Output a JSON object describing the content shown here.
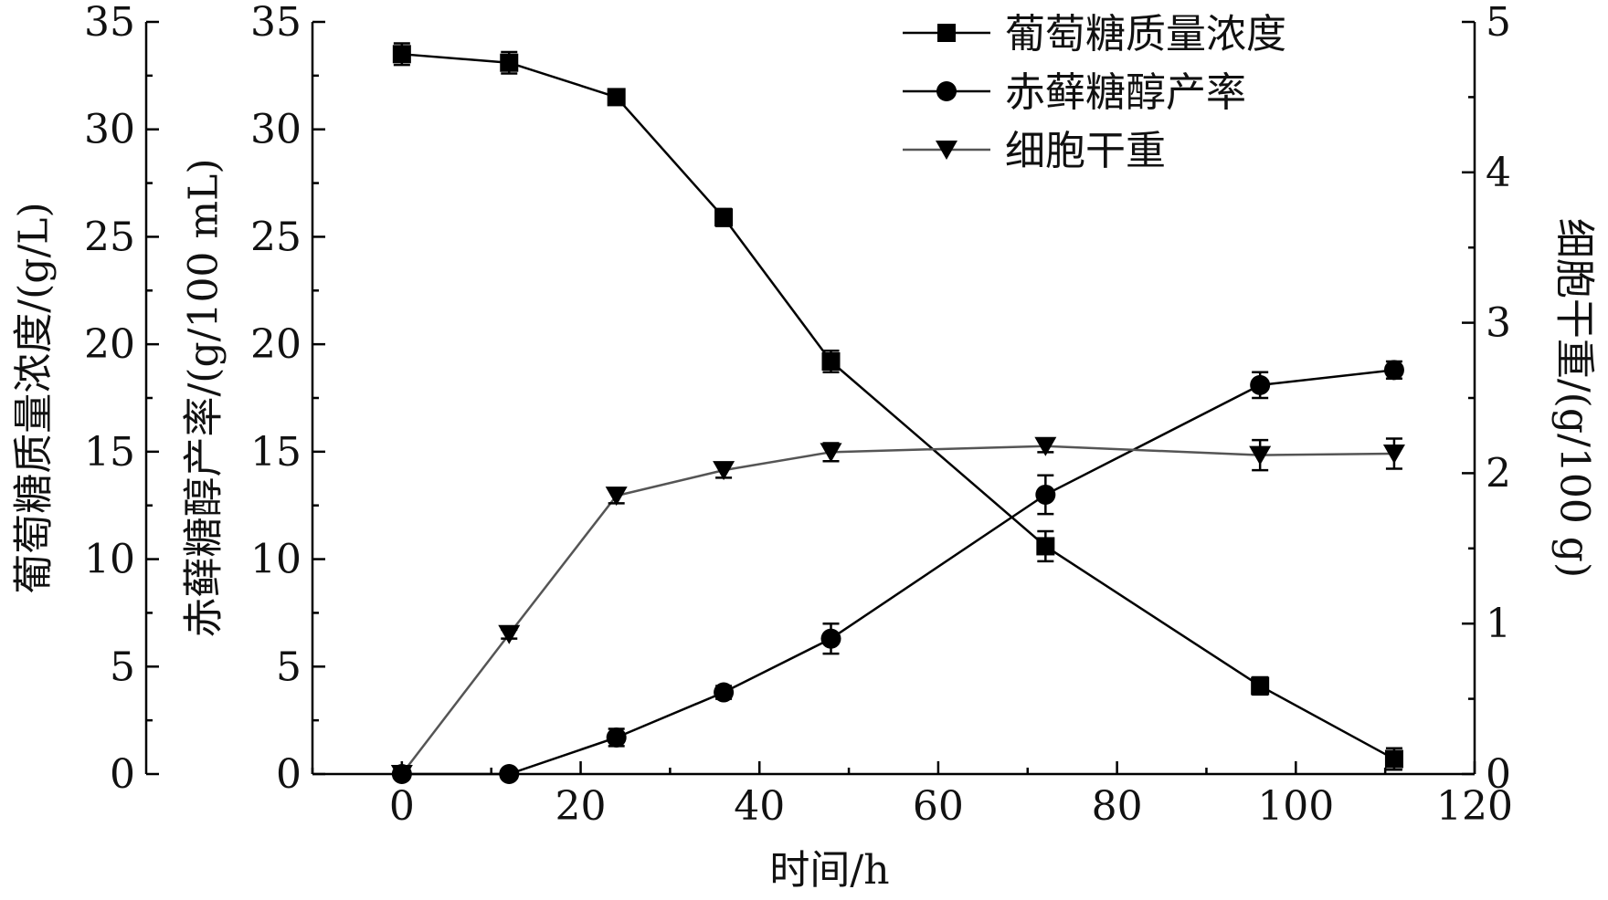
{
  "chart_data": {
    "type": "line",
    "title": "",
    "xlabel": "时间/h",
    "xlim": [
      -10,
      120
    ],
    "x_ticks": [
      0,
      20,
      40,
      60,
      80,
      100,
      120
    ],
    "axes": {
      "left1": {
        "label": "葡萄糖质量浓度/(g/L)",
        "lim": [
          0,
          35
        ],
        "ticks": [
          0,
          5,
          10,
          15,
          20,
          25,
          30,
          35
        ]
      },
      "left2": {
        "label": "赤藓糖醇产率/(g/100 mL)",
        "lim": [
          0,
          35
        ],
        "ticks": [
          0,
          5,
          10,
          15,
          20,
          25,
          30,
          35
        ]
      },
      "right": {
        "label": "细胞干重/(g/100 g)",
        "lim": [
          0,
          5
        ],
        "ticks": [
          0,
          1,
          2,
          3,
          4,
          5
        ]
      }
    },
    "legend_position": "top-right",
    "series": [
      {
        "name": "葡萄糖质量浓度",
        "axis": "left1",
        "marker": "square",
        "color": "#000000",
        "x": [
          0,
          12,
          24,
          36,
          48,
          72,
          96,
          111
        ],
        "y": [
          33.5,
          33.1,
          31.5,
          25.9,
          19.2,
          10.6,
          4.1,
          0.7
        ],
        "err": [
          0.5,
          0.5,
          0.3,
          0.4,
          0.5,
          0.7,
          0.4,
          0.5
        ]
      },
      {
        "name": "赤藓糖醇产率",
        "axis": "left2",
        "marker": "circle",
        "color": "#000000",
        "x": [
          0,
          12,
          24,
          36,
          48,
          72,
          96,
          111
        ],
        "y": [
          0,
          0,
          1.7,
          3.8,
          6.3,
          13.0,
          18.1,
          18.8
        ],
        "err": [
          0.2,
          0.2,
          0.4,
          0.3,
          0.7,
          0.9,
          0.6,
          0.4
        ]
      },
      {
        "name": "细胞干重",
        "axis": "right",
        "marker": "triangle-down",
        "color": "#555555",
        "x": [
          0,
          12,
          24,
          36,
          48,
          72,
          96,
          111
        ],
        "y": [
          0,
          0.93,
          1.85,
          2.02,
          2.14,
          2.18,
          2.12,
          2.13
        ],
        "err": [
          0.03,
          0.03,
          0.05,
          0.05,
          0.06,
          0.04,
          0.1,
          0.1
        ]
      }
    ]
  }
}
